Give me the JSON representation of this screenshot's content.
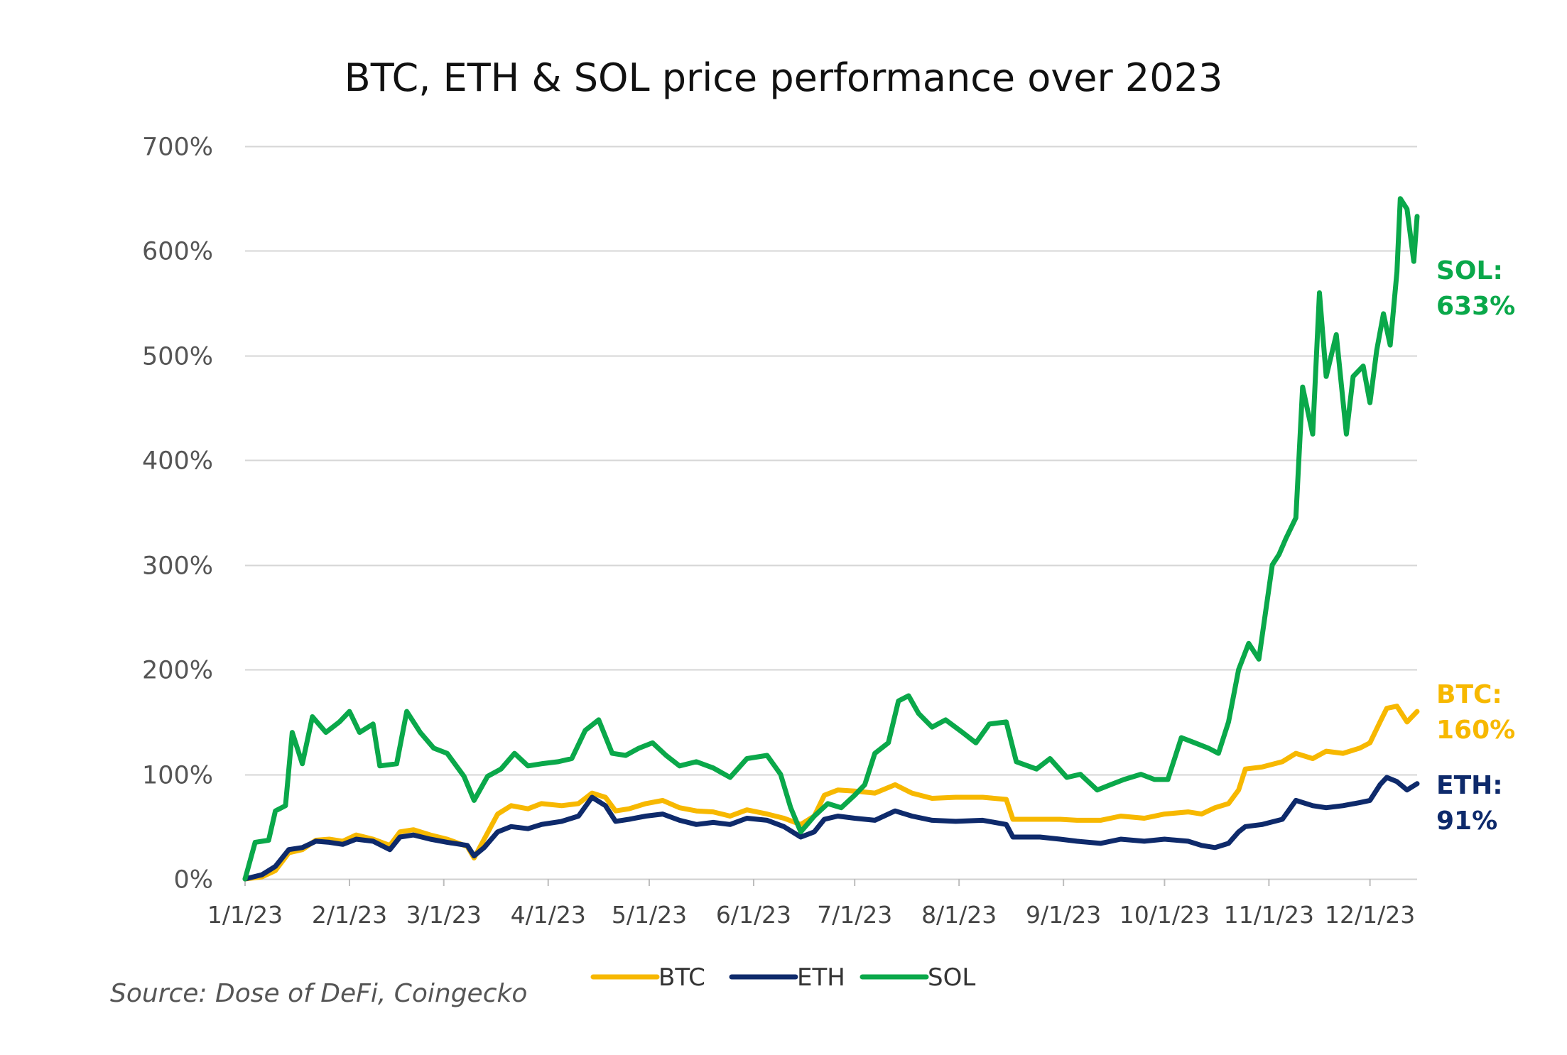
{
  "chart_data": {
    "type": "line",
    "title": "BTC, ETH & SOL price performance over 2023",
    "source": "Source: Dose of DeFi, Coingecko",
    "xlabel": "",
    "ylabel": "",
    "ylim": [
      0,
      700
    ],
    "y_ticks": [
      0,
      100,
      200,
      300,
      400,
      500,
      600,
      700
    ],
    "y_tick_labels": [
      "0%",
      "100%",
      "200%",
      "300%",
      "400%",
      "500%",
      "600%",
      "700%"
    ],
    "x_tick_labels": [
      "1/1/23",
      "2/1/23",
      "3/1/23",
      "4/1/23",
      "5/1/23",
      "6/1/23",
      "7/1/23",
      "8/1/23",
      "9/1/23",
      "10/1/23",
      "11/1/23",
      "12/1/23"
    ],
    "x_tick_dates": [
      "2023-01-01",
      "2023-02-01",
      "2023-03-01",
      "2023-04-01",
      "2023-05-01",
      "2023-06-01",
      "2023-07-01",
      "2023-08-01",
      "2023-09-01",
      "2023-10-01",
      "2023-11-01",
      "2023-12-01"
    ],
    "x_range": [
      "2023-01-01",
      "2023-12-15"
    ],
    "grid": "horizontal",
    "legend_position": "bottom",
    "series": [
      {
        "name": "BTC",
        "color": "#F7B800",
        "end_label": [
          "BTC:",
          "160%"
        ],
        "points": [
          [
            "2023-01-01",
            0
          ],
          [
            "2023-01-06",
            2
          ],
          [
            "2023-01-10",
            8
          ],
          [
            "2023-01-14",
            25
          ],
          [
            "2023-01-18",
            28
          ],
          [
            "2023-01-22",
            37
          ],
          [
            "2023-01-26",
            38
          ],
          [
            "2023-01-30",
            36
          ],
          [
            "2023-02-03",
            42
          ],
          [
            "2023-02-08",
            38
          ],
          [
            "2023-02-13",
            32
          ],
          [
            "2023-02-16",
            45
          ],
          [
            "2023-02-20",
            47
          ],
          [
            "2023-02-25",
            42
          ],
          [
            "2023-03-02",
            38
          ],
          [
            "2023-03-08",
            31
          ],
          [
            "2023-03-10",
            20
          ],
          [
            "2023-03-13",
            38
          ],
          [
            "2023-03-17",
            62
          ],
          [
            "2023-03-21",
            70
          ],
          [
            "2023-03-26",
            67
          ],
          [
            "2023-03-30",
            72
          ],
          [
            "2023-04-05",
            70
          ],
          [
            "2023-04-10",
            72
          ],
          [
            "2023-04-14",
            82
          ],
          [
            "2023-04-18",
            78
          ],
          [
            "2023-04-21",
            65
          ],
          [
            "2023-04-25",
            67
          ],
          [
            "2023-04-30",
            72
          ],
          [
            "2023-05-05",
            75
          ],
          [
            "2023-05-10",
            68
          ],
          [
            "2023-05-15",
            65
          ],
          [
            "2023-05-20",
            64
          ],
          [
            "2023-05-25",
            60
          ],
          [
            "2023-05-30",
            66
          ],
          [
            "2023-06-05",
            62
          ],
          [
            "2023-06-10",
            58
          ],
          [
            "2023-06-15",
            52
          ],
          [
            "2023-06-19",
            60
          ],
          [
            "2023-06-22",
            80
          ],
          [
            "2023-06-26",
            85
          ],
          [
            "2023-07-01",
            84
          ],
          [
            "2023-07-07",
            82
          ],
          [
            "2023-07-13",
            90
          ],
          [
            "2023-07-18",
            82
          ],
          [
            "2023-07-24",
            77
          ],
          [
            "2023-07-31",
            78
          ],
          [
            "2023-08-08",
            78
          ],
          [
            "2023-08-15",
            76
          ],
          [
            "2023-08-17",
            57
          ],
          [
            "2023-08-25",
            57
          ],
          [
            "2023-08-31",
            57
          ],
          [
            "2023-09-05",
            56
          ],
          [
            "2023-09-12",
            56
          ],
          [
            "2023-09-18",
            60
          ],
          [
            "2023-09-25",
            58
          ],
          [
            "2023-10-01",
            62
          ],
          [
            "2023-10-08",
            64
          ],
          [
            "2023-10-12",
            62
          ],
          [
            "2023-10-16",
            68
          ],
          [
            "2023-10-20",
            72
          ],
          [
            "2023-10-23",
            85
          ],
          [
            "2023-10-25",
            105
          ],
          [
            "2023-10-30",
            107
          ],
          [
            "2023-11-05",
            112
          ],
          [
            "2023-11-09",
            120
          ],
          [
            "2023-11-14",
            115
          ],
          [
            "2023-11-18",
            122
          ],
          [
            "2023-11-23",
            120
          ],
          [
            "2023-11-28",
            125
          ],
          [
            "2023-12-01",
            130
          ],
          [
            "2023-12-04",
            150
          ],
          [
            "2023-12-06",
            163
          ],
          [
            "2023-12-09",
            165
          ],
          [
            "2023-12-12",
            150
          ],
          [
            "2023-12-15",
            160
          ]
        ]
      },
      {
        "name": "ETH",
        "color": "#0E2A6B",
        "end_label": [
          "ETH:",
          "91%"
        ],
        "points": [
          [
            "2023-01-01",
            0
          ],
          [
            "2023-01-06",
            4
          ],
          [
            "2023-01-10",
            12
          ],
          [
            "2023-01-14",
            28
          ],
          [
            "2023-01-18",
            30
          ],
          [
            "2023-01-22",
            36
          ],
          [
            "2023-01-26",
            35
          ],
          [
            "2023-01-30",
            33
          ],
          [
            "2023-02-03",
            38
          ],
          [
            "2023-02-08",
            36
          ],
          [
            "2023-02-13",
            28
          ],
          [
            "2023-02-16",
            40
          ],
          [
            "2023-02-20",
            42
          ],
          [
            "2023-02-25",
            38
          ],
          [
            "2023-03-02",
            35
          ],
          [
            "2023-03-08",
            32
          ],
          [
            "2023-03-10",
            22
          ],
          [
            "2023-03-13",
            30
          ],
          [
            "2023-03-17",
            45
          ],
          [
            "2023-03-21",
            50
          ],
          [
            "2023-03-26",
            48
          ],
          [
            "2023-03-30",
            52
          ],
          [
            "2023-04-05",
            55
          ],
          [
            "2023-04-10",
            60
          ],
          [
            "2023-04-14",
            78
          ],
          [
            "2023-04-18",
            70
          ],
          [
            "2023-04-21",
            55
          ],
          [
            "2023-04-25",
            57
          ],
          [
            "2023-04-30",
            60
          ],
          [
            "2023-05-05",
            62
          ],
          [
            "2023-05-10",
            56
          ],
          [
            "2023-05-15",
            52
          ],
          [
            "2023-05-20",
            54
          ],
          [
            "2023-05-25",
            52
          ],
          [
            "2023-05-30",
            58
          ],
          [
            "2023-06-05",
            56
          ],
          [
            "2023-06-10",
            50
          ],
          [
            "2023-06-15",
            40
          ],
          [
            "2023-06-19",
            45
          ],
          [
            "2023-06-22",
            57
          ],
          [
            "2023-06-26",
            60
          ],
          [
            "2023-07-01",
            58
          ],
          [
            "2023-07-07",
            56
          ],
          [
            "2023-07-13",
            65
          ],
          [
            "2023-07-18",
            60
          ],
          [
            "2023-07-24",
            56
          ],
          [
            "2023-07-31",
            55
          ],
          [
            "2023-08-08",
            56
          ],
          [
            "2023-08-15",
            52
          ],
          [
            "2023-08-17",
            40
          ],
          [
            "2023-08-25",
            40
          ],
          [
            "2023-08-31",
            38
          ],
          [
            "2023-09-05",
            36
          ],
          [
            "2023-09-12",
            34
          ],
          [
            "2023-09-18",
            38
          ],
          [
            "2023-09-25",
            36
          ],
          [
            "2023-10-01",
            38
          ],
          [
            "2023-10-08",
            36
          ],
          [
            "2023-10-12",
            32
          ],
          [
            "2023-10-16",
            30
          ],
          [
            "2023-10-20",
            34
          ],
          [
            "2023-10-23",
            45
          ],
          [
            "2023-10-25",
            50
          ],
          [
            "2023-10-30",
            52
          ],
          [
            "2023-11-05",
            57
          ],
          [
            "2023-11-09",
            75
          ],
          [
            "2023-11-14",
            70
          ],
          [
            "2023-11-18",
            68
          ],
          [
            "2023-11-23",
            70
          ],
          [
            "2023-11-28",
            73
          ],
          [
            "2023-12-01",
            75
          ],
          [
            "2023-12-04",
            90
          ],
          [
            "2023-12-06",
            97
          ],
          [
            "2023-12-09",
            93
          ],
          [
            "2023-12-12",
            85
          ],
          [
            "2023-12-15",
            91
          ]
        ]
      },
      {
        "name": "SOL",
        "color": "#0AA84A",
        "end_label": [
          "SOL:",
          "633%"
        ],
        "points": [
          [
            "2023-01-01",
            0
          ],
          [
            "2023-01-04",
            35
          ],
          [
            "2023-01-08",
            37
          ],
          [
            "2023-01-10",
            65
          ],
          [
            "2023-01-13",
            70
          ],
          [
            "2023-01-15",
            140
          ],
          [
            "2023-01-18",
            110
          ],
          [
            "2023-01-21",
            155
          ],
          [
            "2023-01-25",
            140
          ],
          [
            "2023-01-29",
            150
          ],
          [
            "2023-02-01",
            160
          ],
          [
            "2023-02-04",
            140
          ],
          [
            "2023-02-08",
            148
          ],
          [
            "2023-02-10",
            108
          ],
          [
            "2023-02-15",
            110
          ],
          [
            "2023-02-18",
            160
          ],
          [
            "2023-02-22",
            140
          ],
          [
            "2023-02-26",
            125
          ],
          [
            "2023-03-02",
            120
          ],
          [
            "2023-03-07",
            98
          ],
          [
            "2023-03-10",
            75
          ],
          [
            "2023-03-14",
            98
          ],
          [
            "2023-03-18",
            105
          ],
          [
            "2023-03-22",
            120
          ],
          [
            "2023-03-26",
            108
          ],
          [
            "2023-03-30",
            110
          ],
          [
            "2023-04-04",
            112
          ],
          [
            "2023-04-08",
            115
          ],
          [
            "2023-04-12",
            142
          ],
          [
            "2023-04-16",
            152
          ],
          [
            "2023-04-20",
            120
          ],
          [
            "2023-04-24",
            118
          ],
          [
            "2023-04-28",
            125
          ],
          [
            "2023-05-02",
            130
          ],
          [
            "2023-05-06",
            118
          ],
          [
            "2023-05-10",
            108
          ],
          [
            "2023-05-15",
            112
          ],
          [
            "2023-05-20",
            106
          ],
          [
            "2023-05-25",
            97
          ],
          [
            "2023-05-30",
            115
          ],
          [
            "2023-06-05",
            118
          ],
          [
            "2023-06-09",
            100
          ],
          [
            "2023-06-12",
            68
          ],
          [
            "2023-06-15",
            45
          ],
          [
            "2023-06-19",
            60
          ],
          [
            "2023-06-23",
            72
          ],
          [
            "2023-06-27",
            68
          ],
          [
            "2023-07-01",
            80
          ],
          [
            "2023-07-04",
            90
          ],
          [
            "2023-07-07",
            120
          ],
          [
            "2023-07-11",
            130
          ],
          [
            "2023-07-14",
            170
          ],
          [
            "2023-07-17",
            175
          ],
          [
            "2023-07-20",
            158
          ],
          [
            "2023-07-24",
            145
          ],
          [
            "2023-07-28",
            152
          ],
          [
            "2023-08-02",
            140
          ],
          [
            "2023-08-06",
            130
          ],
          [
            "2023-08-10",
            148
          ],
          [
            "2023-08-15",
            150
          ],
          [
            "2023-08-18",
            112
          ],
          [
            "2023-08-24",
            105
          ],
          [
            "2023-08-28",
            115
          ],
          [
            "2023-09-02",
            97
          ],
          [
            "2023-09-06",
            100
          ],
          [
            "2023-09-11",
            85
          ],
          [
            "2023-09-15",
            90
          ],
          [
            "2023-09-19",
            95
          ],
          [
            "2023-09-24",
            100
          ],
          [
            "2023-09-28",
            95
          ],
          [
            "2023-10-02",
            95
          ],
          [
            "2023-10-06",
            135
          ],
          [
            "2023-10-10",
            130
          ],
          [
            "2023-10-14",
            125
          ],
          [
            "2023-10-17",
            120
          ],
          [
            "2023-10-20",
            150
          ],
          [
            "2023-10-23",
            200
          ],
          [
            "2023-10-26",
            225
          ],
          [
            "2023-10-29",
            210
          ],
          [
            "2023-11-02",
            300
          ],
          [
            "2023-11-04",
            310
          ],
          [
            "2023-11-06",
            325
          ],
          [
            "2023-11-09",
            345
          ],
          [
            "2023-11-11",
            470
          ],
          [
            "2023-11-14",
            425
          ],
          [
            "2023-11-16",
            560
          ],
          [
            "2023-11-18",
            480
          ],
          [
            "2023-11-21",
            520
          ],
          [
            "2023-11-24",
            425
          ],
          [
            "2023-11-26",
            480
          ],
          [
            "2023-11-29",
            490
          ],
          [
            "2023-12-01",
            455
          ],
          [
            "2023-12-03",
            505
          ],
          [
            "2023-12-05",
            540
          ],
          [
            "2023-12-07",
            510
          ],
          [
            "2023-12-09",
            580
          ],
          [
            "2023-12-10",
            650
          ],
          [
            "2023-12-12",
            640
          ],
          [
            "2023-12-14",
            590
          ],
          [
            "2023-12-15",
            633
          ]
        ]
      }
    ]
  }
}
